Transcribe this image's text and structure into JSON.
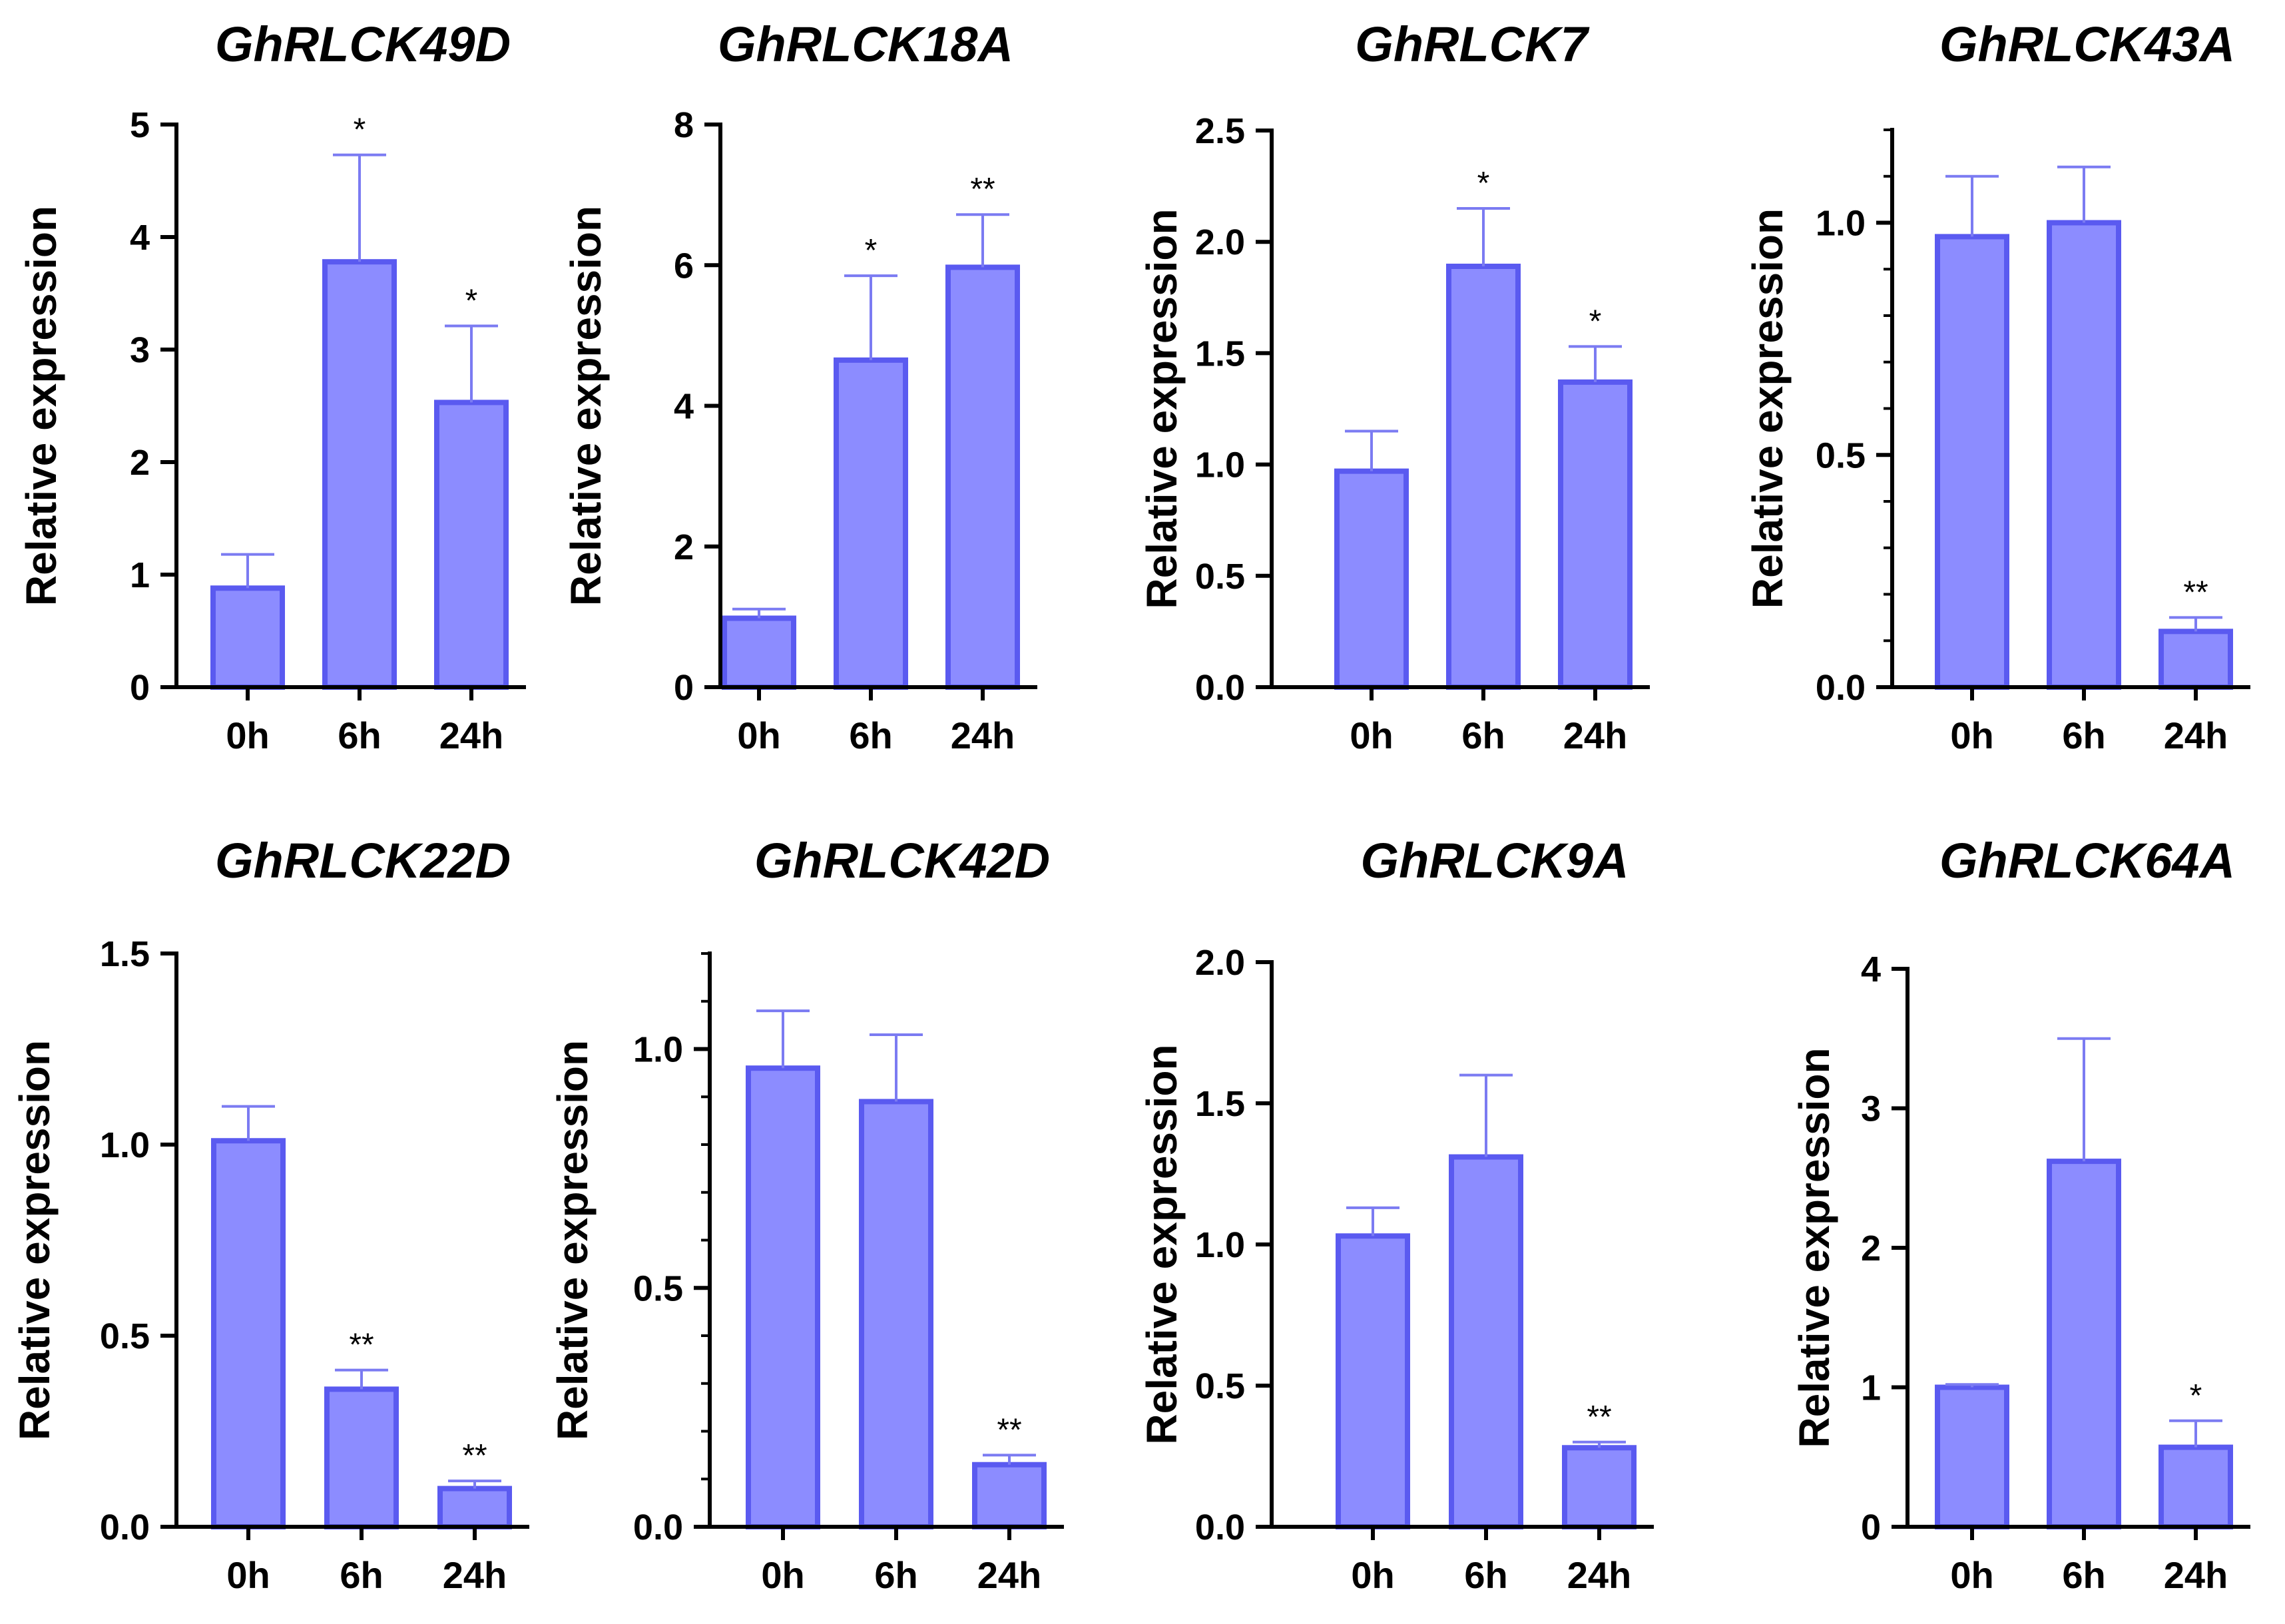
{
  "figure": {
    "bar_fill": "#8c8cff",
    "bar_stroke": "#5a5af0",
    "errorbar_color": "#7b7bf2",
    "axis_color": "#000000"
  },
  "chart_data": [
    {
      "type": "bar",
      "title": "GhRLCK49D",
      "xlabel": "",
      "ylabel": "Relative expression",
      "categories": [
        "0h",
        "6h",
        "24h"
      ],
      "values": [
        0.88,
        3.78,
        2.53
      ],
      "errors": [
        0.3,
        0.95,
        0.68
      ],
      "significance": [
        "",
        "*",
        "*"
      ],
      "ylim": [
        0,
        5
      ],
      "yticks": [
        0,
        1,
        2,
        3,
        4,
        5
      ],
      "ytick_labels": [
        "0",
        "1",
        "2",
        "3",
        "4",
        "5"
      ],
      "minor_ticks": 0
    },
    {
      "type": "bar",
      "title": "GhRLCK18A",
      "xlabel": "",
      "ylabel": "Relative expression",
      "categories": [
        "0h",
        "6h",
        "24h"
      ],
      "values": [
        0.98,
        4.65,
        5.97
      ],
      "errors": [
        0.13,
        1.2,
        0.75
      ],
      "significance": [
        "",
        "*",
        "**"
      ],
      "ylim": [
        0,
        8
      ],
      "yticks": [
        0,
        2,
        4,
        6,
        8
      ],
      "ytick_labels": [
        "0",
        "2",
        "4",
        "6",
        "8"
      ],
      "minor_ticks": 0
    },
    {
      "type": "bar",
      "title": "GhRLCK7",
      "xlabel": "",
      "ylabel": "Relative expression",
      "categories": [
        "0h",
        "6h",
        "24h"
      ],
      "values": [
        0.97,
        1.89,
        1.37
      ],
      "errors": [
        0.18,
        0.26,
        0.16
      ],
      "significance": [
        "",
        "*",
        "*"
      ],
      "ylim": [
        0,
        2.5
      ],
      "yticks": [
        0,
        0.5,
        1.0,
        1.5,
        2.0,
        2.5
      ],
      "ytick_labels": [
        "0.0",
        "0.5",
        "1.0",
        "1.5",
        "2.0",
        "2.5"
      ],
      "minor_ticks": 0
    },
    {
      "type": "bar",
      "title": "GhRLCK43A",
      "xlabel": "",
      "ylabel": "Relative expression",
      "categories": [
        "0h",
        "6h",
        "24h"
      ],
      "values": [
        0.97,
        1.0,
        0.12
      ],
      "errors": [
        0.13,
        0.12,
        0.03
      ],
      "significance": [
        "",
        "",
        "**"
      ],
      "ylim": [
        0,
        1.2
      ],
      "yticks": [
        0,
        0.5,
        1.0
      ],
      "ytick_labels": [
        "0.0",
        "0.5",
        "1.0"
      ],
      "minor_ticks": 4
    },
    {
      "type": "bar",
      "title": "GhRLCK22D",
      "xlabel": "",
      "ylabel": "Relative expression",
      "categories": [
        "0h",
        "6h",
        "24h"
      ],
      "values": [
        1.01,
        0.36,
        0.1
      ],
      "errors": [
        0.09,
        0.05,
        0.02
      ],
      "significance": [
        "",
        "**",
        "**"
      ],
      "ylim": [
        0,
        1.5
      ],
      "yticks": [
        0,
        0.5,
        1.0,
        1.5
      ],
      "ytick_labels": [
        "0.0",
        "0.5",
        "1.0",
        "1.5"
      ],
      "minor_ticks": 0
    },
    {
      "type": "bar",
      "title": "GhRLCK42D",
      "xlabel": "",
      "ylabel": "Relative expression",
      "categories": [
        "0h",
        "6h",
        "24h"
      ],
      "values": [
        0.96,
        0.89,
        0.13
      ],
      "errors": [
        0.12,
        0.14,
        0.02
      ],
      "significance": [
        "",
        "",
        "**"
      ],
      "ylim": [
        0,
        1.2
      ],
      "yticks": [
        0,
        0.5,
        1.0
      ],
      "ytick_labels": [
        "0.0",
        "0.5",
        "1.0"
      ],
      "minor_ticks": 4
    },
    {
      "type": "bar",
      "title": "GhRLCK9A",
      "xlabel": "",
      "ylabel": "Relative expression",
      "categories": [
        "0h",
        "6h",
        "24h"
      ],
      "values": [
        1.03,
        1.31,
        0.28
      ],
      "errors": [
        0.1,
        0.29,
        0.02
      ],
      "significance": [
        "",
        "",
        "**"
      ],
      "ylim": [
        0,
        2.0
      ],
      "yticks": [
        0,
        0.5,
        1.0,
        1.5,
        2.0
      ],
      "ytick_labels": [
        "0.0",
        "0.5",
        "1.0",
        "1.5",
        "2.0"
      ],
      "minor_ticks": 0
    },
    {
      "type": "bar",
      "title": "GhRLCK64A",
      "xlabel": "",
      "ylabel": "Relative expression",
      "categories": [
        "0h",
        "6h",
        "24h"
      ],
      "values": [
        1.0,
        2.62,
        0.57
      ],
      "errors": [
        0.02,
        0.88,
        0.19
      ],
      "significance": [
        "",
        "",
        "*"
      ],
      "ylim": [
        0,
        4
      ],
      "yticks": [
        0,
        1,
        2,
        3,
        4
      ],
      "ytick_labels": [
        "0",
        "1",
        "2",
        "3",
        "4"
      ],
      "minor_ticks": 0
    }
  ]
}
